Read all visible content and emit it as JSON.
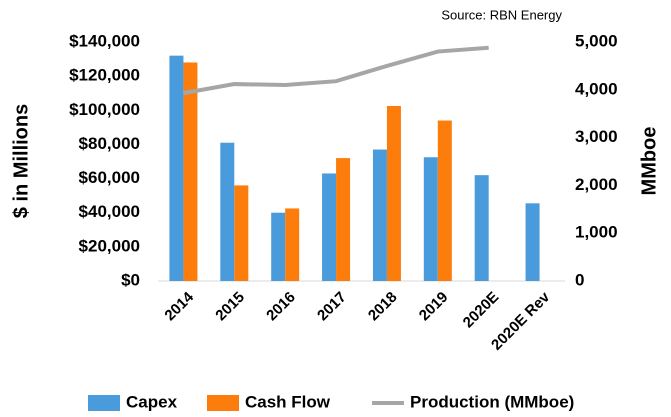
{
  "chart_data": {
    "type": "bar",
    "source": "Source: RBN Energy",
    "ylabel": "$ in Millions",
    "y2label": "MMboe",
    "categories": [
      "2014",
      "2015",
      "2016",
      "2017",
      "2018",
      "2019",
      "2020E",
      "2020E Rev"
    ],
    "series": [
      {
        "name": "Capex",
        "color": "#4a9bdc",
        "values": [
          132000,
          81000,
          40000,
          63000,
          77000,
          72500,
          62000,
          45500
        ]
      },
      {
        "name": "Cash Flow",
        "color": "#fc7d0b",
        "values": [
          128000,
          56000,
          42500,
          72000,
          102500,
          94000,
          null,
          null
        ]
      },
      {
        "name": "Production (MMboe)",
        "color": "#a6a6a6",
        "type": "line",
        "axis": "y2",
        "values": [
          3930,
          4120,
          4100,
          4180,
          4500,
          4800,
          4880,
          null
        ]
      }
    ],
    "ylim": [
      0,
      140000
    ],
    "yticks": [
      {
        "value": 0,
        "label": "$0"
      },
      {
        "value": 20000,
        "label": "$20,000"
      },
      {
        "value": 40000,
        "label": "$40,000"
      },
      {
        "value": 60000,
        "label": "$60,000"
      },
      {
        "value": 80000,
        "label": "$80,000"
      },
      {
        "value": 100000,
        "label": "$100,000"
      },
      {
        "value": 120000,
        "label": "$120,000"
      },
      {
        "value": 140000,
        "label": "$140,000"
      }
    ],
    "y2lim": [
      0,
      5000
    ],
    "y2ticks": [
      0,
      {
        "value": 1000,
        "label": "1,000"
      },
      {
        "value": 2000,
        "label": "2,000"
      },
      {
        "value": 3000,
        "label": "3,000"
      },
      {
        "value": 4000,
        "label": "4,000"
      },
      {
        "value": 5000,
        "label": "5,000"
      }
    ],
    "grid": false,
    "legend": "bottom"
  }
}
